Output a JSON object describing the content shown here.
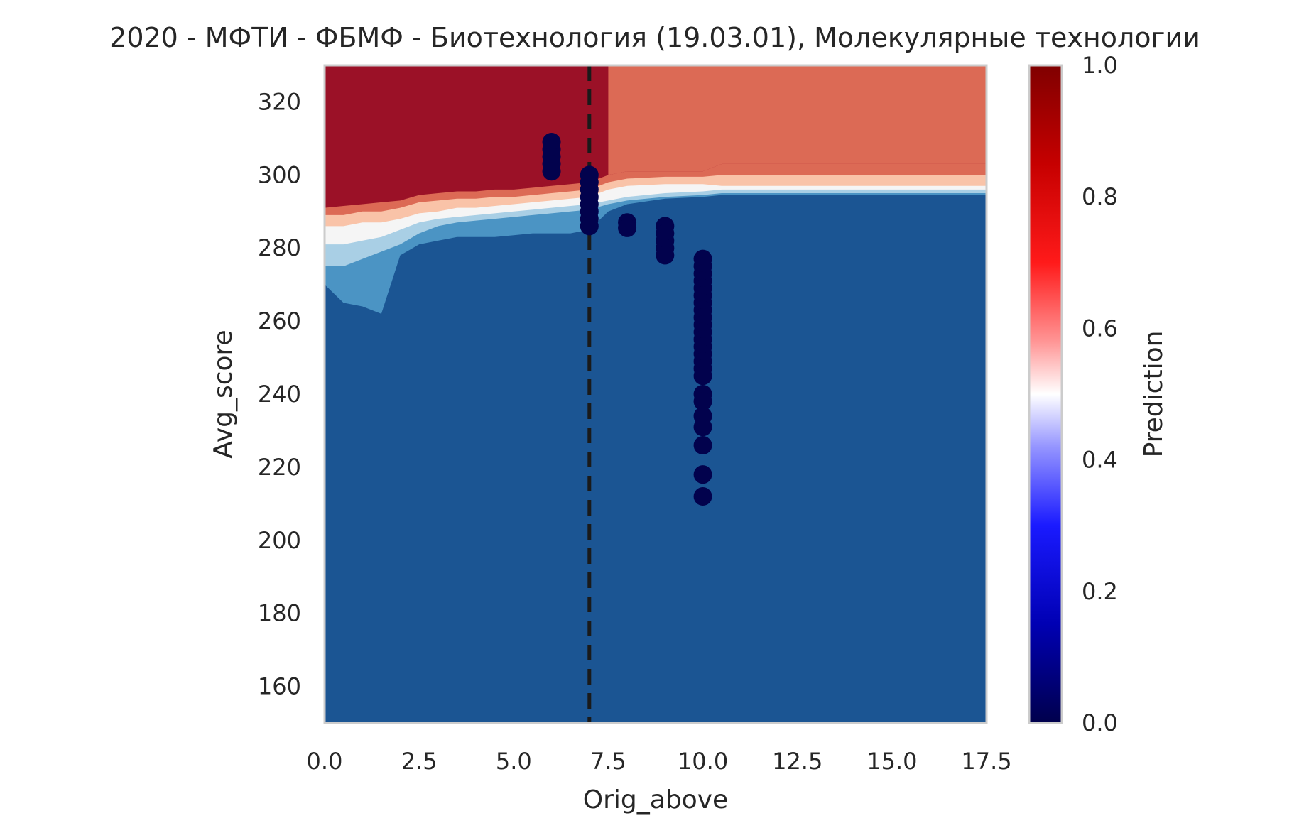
{
  "chart_data": {
    "type": "scatter",
    "title": "2020 - МФТИ - ФБМФ - Биотехнология (19.03.01), Молекулярные технологии",
    "xlabel": "Orig_above",
    "ylabel": "Avg_score",
    "xlim": [
      0,
      17.5
    ],
    "ylim": [
      150,
      330
    ],
    "x_ticks": [
      "0.0",
      "2.5",
      "5.0",
      "7.5",
      "10.0",
      "12.5",
      "15.0",
      "17.5"
    ],
    "y_ticks": [
      "160",
      "180",
      "200",
      "220",
      "240",
      "260",
      "280",
      "300",
      "320"
    ],
    "grid": false,
    "vline": {
      "x": 7,
      "style": "dashed",
      "color": "#1a1a1a"
    },
    "colorbar": {
      "label": "Prediction",
      "range": [
        0.0,
        1.0
      ],
      "ticks": [
        "0.0",
        "0.2",
        "0.4",
        "0.6",
        "0.8",
        "1.0"
      ],
      "colormap": "seismic"
    },
    "background_regions": {
      "description_levels": [
        {
          "level": 0.05,
          "color": "#1b5593"
        },
        {
          "level": 0.15,
          "color": "#4b94c4"
        },
        {
          "level": 0.25,
          "color": "#a9cfe5"
        },
        {
          "level": 0.35,
          "color": "#dfecf5"
        },
        {
          "level": 0.5,
          "color": "#f5f5f5"
        },
        {
          "level": 0.65,
          "color": "#f9c3a8"
        },
        {
          "level": 0.8,
          "color": "#dc6a55"
        },
        {
          "level": 0.95,
          "color": "#9b1127"
        }
      ],
      "boundary_x": [
        0,
        0.5,
        1.0,
        1.5,
        2.0,
        2.5,
        3.0,
        3.5,
        4.0,
        4.5,
        5.0,
        5.5,
        6.0,
        6.5,
        7.0,
        7.5,
        8.0,
        9.0,
        10.0,
        10.5,
        11.0,
        12.0,
        13.0,
        14.0,
        15.0,
        16.0,
        17.5
      ],
      "boundary_bands": {
        "top_red_hi": [
          291,
          291.5,
          292,
          292.5,
          293,
          294.5,
          295,
          295.5,
          295.5,
          296,
          296,
          296.5,
          297,
          297.5,
          298,
          300,
          301,
          301,
          301,
          303,
          303,
          303,
          303,
          303,
          303,
          303,
          303
        ],
        "red_mid": [
          289,
          289,
          290,
          290,
          291,
          292.5,
          293,
          293.5,
          293.5,
          294,
          294,
          294.5,
          295,
          295.5,
          296,
          298,
          299,
          299.5,
          299.5,
          300,
          300,
          300,
          300,
          300,
          300,
          300,
          300
        ],
        "salmon": [
          286,
          286,
          287,
          287,
          288,
          289.5,
          290,
          291,
          291,
          291.5,
          292,
          292.5,
          293,
          293.5,
          294,
          296,
          297,
          297.5,
          297.5,
          297,
          297,
          297,
          297,
          297,
          297,
          297,
          297
        ],
        "white": [
          281,
          281,
          282,
          283,
          285,
          287,
          288,
          288.5,
          289,
          289.5,
          290,
          290.5,
          291,
          291.5,
          292,
          293,
          294,
          295,
          295.5,
          296,
          296,
          296,
          296,
          296,
          296,
          296,
          296
        ],
        "lightblue": [
          275,
          275,
          277,
          279,
          281,
          284,
          286,
          287,
          287.5,
          288,
          288.5,
          289,
          289.5,
          290,
          290.5,
          292,
          293,
          294,
          294.5,
          295,
          295,
          295,
          295,
          295,
          295,
          295,
          295
        ],
        "midblue": [
          270,
          265,
          264,
          262,
          278,
          281,
          282,
          283,
          283,
          283,
          283.5,
          284,
          284,
          284,
          285,
          290,
          292,
          293.5,
          294,
          294.5,
          294.5,
          294.5,
          294.5,
          294.5,
          294.5,
          294.5,
          294.5
        ]
      },
      "upper_right_x_start": 7.5
    },
    "series": [
      {
        "points": [
          {
            "x": 6,
            "y": 309
          },
          {
            "x": 6,
            "y": 307
          },
          {
            "x": 6,
            "y": 305
          },
          {
            "x": 6,
            "y": 303
          },
          {
            "x": 6,
            "y": 301
          },
          {
            "x": 7,
            "y": 300
          },
          {
            "x": 7,
            "y": 298
          },
          {
            "x": 7,
            "y": 296
          },
          {
            "x": 7,
            "y": 294
          },
          {
            "x": 7,
            "y": 292
          },
          {
            "x": 7,
            "y": 290
          },
          {
            "x": 7,
            "y": 288
          },
          {
            "x": 7,
            "y": 286
          },
          {
            "x": 8,
            "y": 287
          },
          {
            "x": 8,
            "y": 285.5
          },
          {
            "x": 9,
            "y": 286
          },
          {
            "x": 9,
            "y": 284
          },
          {
            "x": 9,
            "y": 282
          },
          {
            "x": 9,
            "y": 280
          },
          {
            "x": 9,
            "y": 278
          },
          {
            "x": 10,
            "y": 277
          },
          {
            "x": 10,
            "y": 275
          },
          {
            "x": 10,
            "y": 273
          },
          {
            "x": 10,
            "y": 271
          },
          {
            "x": 10,
            "y": 269
          },
          {
            "x": 10,
            "y": 267
          },
          {
            "x": 10,
            "y": 265
          },
          {
            "x": 10,
            "y": 263
          },
          {
            "x": 10,
            "y": 261
          },
          {
            "x": 10,
            "y": 259
          },
          {
            "x": 10,
            "y": 257
          },
          {
            "x": 10,
            "y": 255
          },
          {
            "x": 10,
            "y": 253
          },
          {
            "x": 10,
            "y": 251
          },
          {
            "x": 10,
            "y": 249
          },
          {
            "x": 10,
            "y": 247
          },
          {
            "x": 10,
            "y": 245
          },
          {
            "x": 10,
            "y": 240
          },
          {
            "x": 10,
            "y": 238
          },
          {
            "x": 10,
            "y": 234
          },
          {
            "x": 10,
            "y": 231
          },
          {
            "x": 10,
            "y": 226
          },
          {
            "x": 10,
            "y": 218
          },
          {
            "x": 10,
            "y": 212
          }
        ],
        "color": "#02024d"
      }
    ]
  }
}
